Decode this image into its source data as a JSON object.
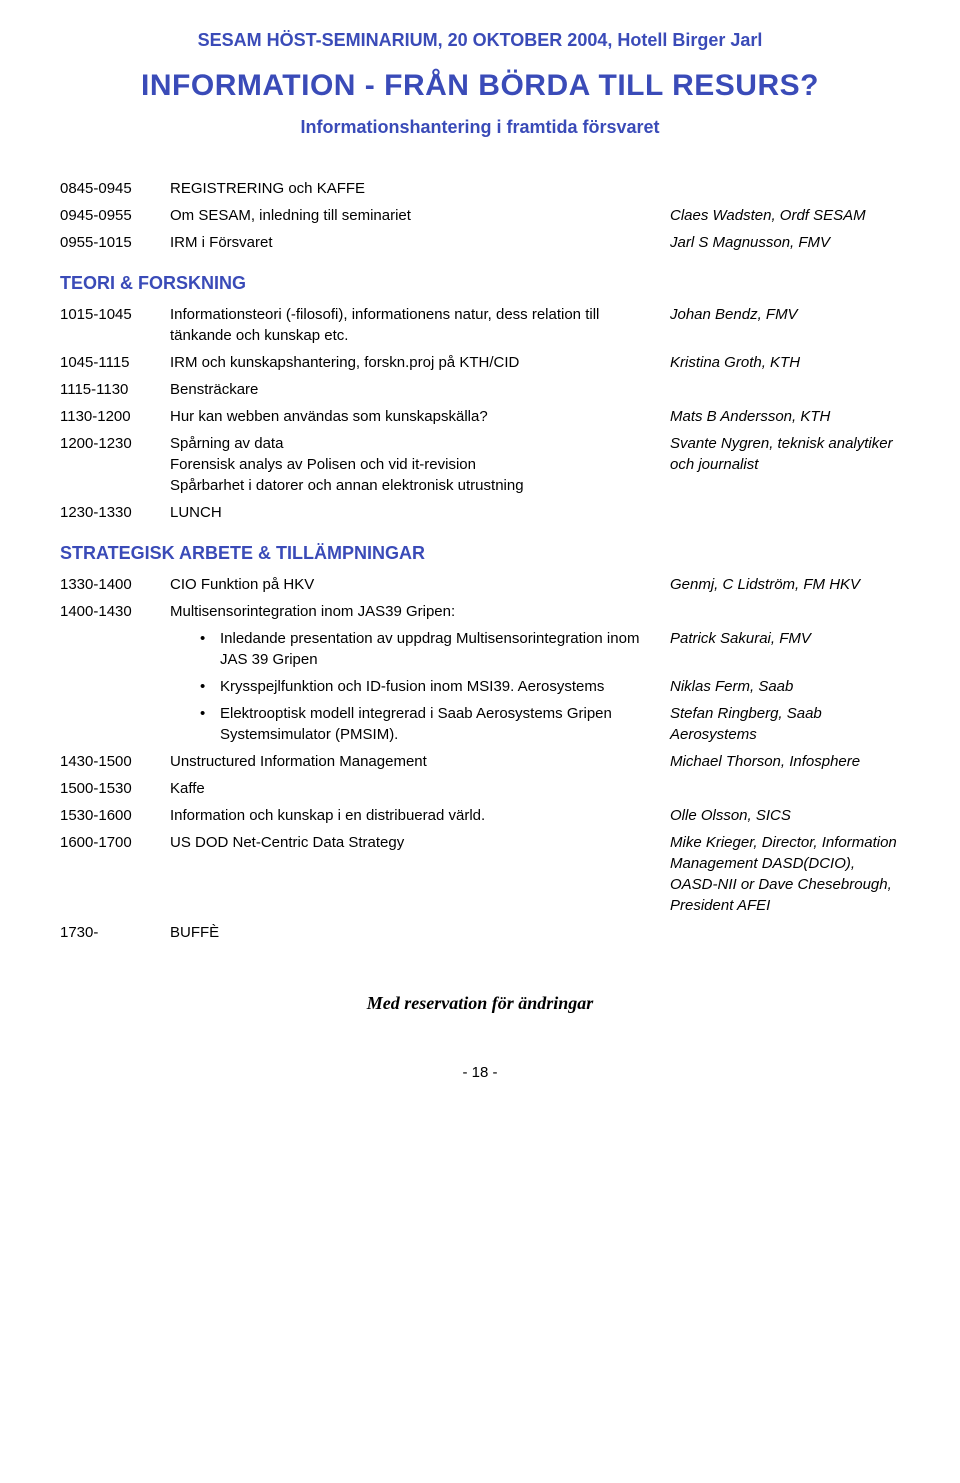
{
  "header": "SESAM HÖST-SEMINARIUM, 20 OKTOBER 2004, Hotell Birger Jarl",
  "title": "INFORMATION - FRÅN BÖRDA TILL RESURS?",
  "subtitle": "Informationshantering i framtida försvaret",
  "rows_top": [
    {
      "time": "0845-0945",
      "desc": "REGISTRERING och KAFFE",
      "speaker": ""
    },
    {
      "time": "0945-0955",
      "desc": "Om SESAM, inledning till seminariet",
      "speaker": "Claes Wadsten, Ordf SESAM"
    },
    {
      "time": "0955-1015",
      "desc": "IRM i Försvaret",
      "speaker": "Jarl S Magnusson, FMV"
    }
  ],
  "section1": "TEORI & FORSKNING",
  "rows_s1": [
    {
      "time": "1015-1045",
      "desc": "Informationsteori (-filosofi), informationens natur, dess relation till tänkande och kunskap etc.",
      "speaker": "Johan Bendz, FMV"
    },
    {
      "time": "1045-1115",
      "desc": "IRM och kunskapshantering, forskn.proj på KTH/CID",
      "speaker": "Kristina Groth, KTH"
    },
    {
      "time": "1115-1130",
      "desc": "Bensträckare",
      "speaker": ""
    },
    {
      "time": "1130-1200",
      "desc": "Hur kan webben användas som kunskapskälla?",
      "speaker": "Mats B Andersson, KTH"
    },
    {
      "time": "1200-1230",
      "desc": "Spårning av data\nForensisk analys av Polisen och vid it-revision\nSpårbarhet i datorer och annan elektronisk utrustning",
      "speaker": "Svante Nygren, teknisk analytiker och journalist"
    },
    {
      "time": "1230-1330",
      "desc": "LUNCH",
      "speaker": ""
    }
  ],
  "section2": "STRATEGISK ARBETE & TILLÄMPNINGAR",
  "rows_s2a": [
    {
      "time": "1330-1400",
      "desc": "CIO Funktion på HKV",
      "speaker": "Genmj, C Lidström, FM HKV"
    },
    {
      "time": "1400-1430",
      "desc": "Multisensorintegration inom JAS39 Gripen:",
      "speaker": ""
    }
  ],
  "bullets": [
    {
      "text": "Inledande presentation av uppdrag Multisensorintegration inom JAS 39 Gripen",
      "speaker": "Patrick Sakurai, FMV"
    },
    {
      "text": "Krysspejlfunktion och ID-fusion inom MSI39. Aerosystems",
      "speaker": "Niklas Ferm, Saab"
    },
    {
      "text": "Elektrooptisk modell integrerad i Saab Aerosystems Gripen Systemsimulator (PMSIM).",
      "speaker": "Stefan Ringberg, Saab Aerosystems"
    }
  ],
  "rows_s2b": [
    {
      "time": "1430-1500",
      "desc": "Unstructured Information Management",
      "speaker": "Michael Thorson, Infosphere"
    },
    {
      "time": "1500-1530",
      "desc": "Kaffe",
      "speaker": ""
    },
    {
      "time": "1530-1600",
      "desc": "Information och kunskap i en distribuerad värld.",
      "speaker": "Olle Olsson, SICS"
    },
    {
      "time": "1600-1700",
      "desc": "US DOD Net-Centric Data Strategy",
      "speaker": "Mike Krieger, Director, Information Management DASD(DCIO), OASD-NII or Dave Chesebrough, President AFEI"
    },
    {
      "time": "1730-",
      "desc": "BUFFÈ",
      "speaker": ""
    }
  ],
  "footer_note": "Med reservation för ändringar",
  "page_num": "- 18 -",
  "colors": {
    "accent": "#3a4bb8",
    "text": "#000000",
    "background": "#ffffff"
  }
}
